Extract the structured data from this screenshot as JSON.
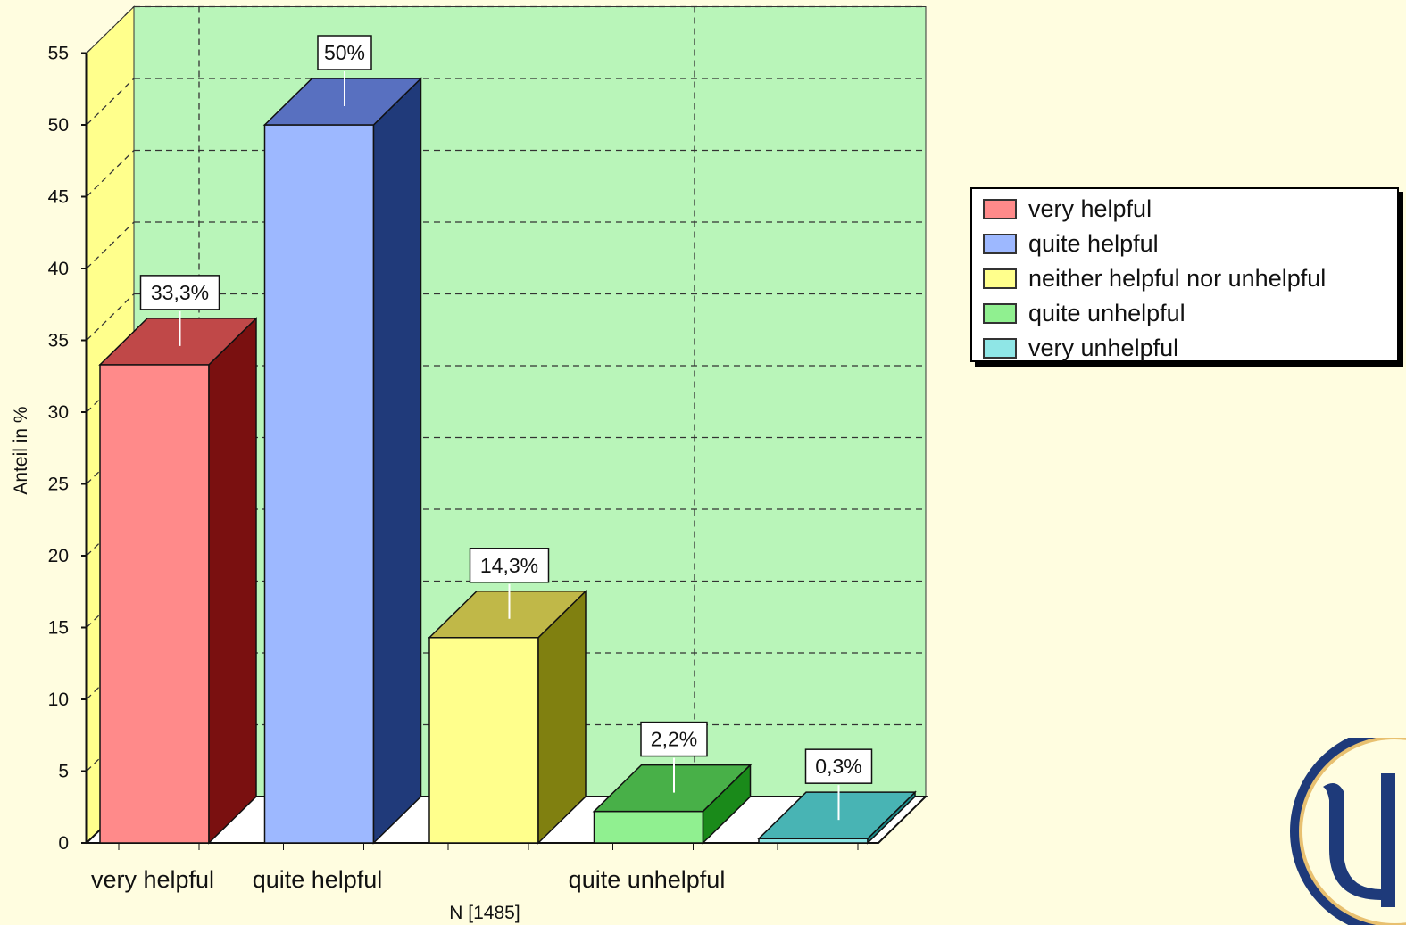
{
  "chart_data": {
    "type": "bar",
    "categories": [
      "very helpful",
      "quite helpful",
      "neither helpful nor unhelpful",
      "quite unhelpful",
      "very unhelpful"
    ],
    "values": [
      33.3,
      50,
      14.3,
      2.2,
      0.3
    ],
    "data_labels": [
      "33,3%",
      "50%",
      "14,3%",
      "2,2%",
      "0,3%"
    ],
    "x_tick_labels": [
      "very helpful",
      "quite helpful",
      "",
      "quite unhelpful",
      ""
    ],
    "xlabel": "N [1485]",
    "ylabel": "Anteil in %",
    "ylim": [
      0,
      55
    ],
    "yticks": [
      "0",
      "5",
      "10",
      "15",
      "20",
      "25",
      "30",
      "35",
      "40",
      "45",
      "50",
      "55"
    ],
    "grid": true,
    "legend_position": "right",
    "three_d": true,
    "colors": {
      "front": [
        "#ff8a8a",
        "#9db8ff",
        "#ffff8c",
        "#90f090",
        "#8fe6e6"
      ],
      "side": [
        "#7a1010",
        "#203a7a",
        "#808010",
        "#1a8a1a",
        "#1a8a8a"
      ],
      "top": [
        "#c04848",
        "#5870c0",
        "#c0b848",
        "#48b048",
        "#48b4b4"
      ],
      "plot_background": "#b9f5b9",
      "left_wall": "#ffff8c",
      "page_background": "#fffde0"
    }
  },
  "legend": {
    "items": [
      {
        "label": "very helpful",
        "color": "#ff8a8a"
      },
      {
        "label": "quite helpful",
        "color": "#9db8ff"
      },
      {
        "label": "neither helpful nor unhelpful",
        "color": "#ffff8c"
      },
      {
        "label": "quite unhelpful",
        "color": "#90f090"
      },
      {
        "label": "very unhelpful",
        "color": "#8fe6e6"
      }
    ]
  },
  "logo": {
    "icon": "psi-logo-icon"
  }
}
